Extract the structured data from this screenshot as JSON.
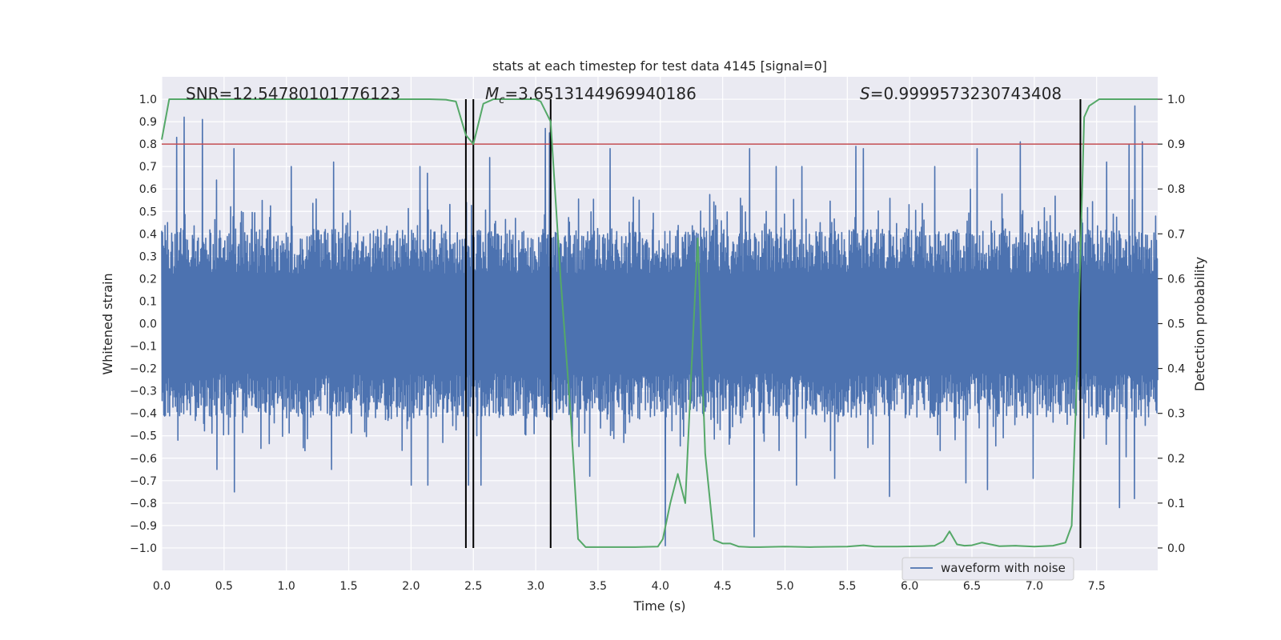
{
  "chart_data": {
    "type": "line",
    "title": "stats at each timestep for test data 4145 [signal=0]",
    "xlabel": "Time (s)",
    "ylabel": "Whitened strain",
    "y2label": "Detection probability",
    "xlim": [
      0.0,
      7.99
    ],
    "ylim": [
      -1.1,
      1.1
    ],
    "y2lim": [
      -0.05,
      1.05
    ],
    "x_ticks": [
      0.0,
      0.5,
      1.0,
      1.5,
      2.0,
      2.5,
      3.0,
      3.5,
      4.0,
      4.5,
      5.0,
      5.5,
      6.0,
      6.5,
      7.0,
      7.5
    ],
    "x_tick_labels": [
      "0.0",
      "0.5",
      "1.0",
      "1.5",
      "2.0",
      "2.5",
      "3.0",
      "3.5",
      "4.0",
      "4.5",
      "5.0",
      "5.5",
      "6.0",
      "6.5",
      "7.0",
      "7.5"
    ],
    "y_ticks": [
      -1.0,
      -0.9,
      -0.8,
      -0.7,
      -0.6,
      -0.5,
      -0.4,
      -0.3,
      -0.2,
      -0.1,
      0.0,
      0.1,
      0.2,
      0.3,
      0.4,
      0.5,
      0.6,
      0.7,
      0.8,
      0.9,
      1.0
    ],
    "y_tick_labels": [
      "−1.0",
      "−0.9",
      "−0.8",
      "−0.7",
      "−0.6",
      "−0.5",
      "−0.4",
      "−0.3",
      "−0.2",
      "−0.1",
      "0.0",
      "0.1",
      "0.2",
      "0.3",
      "0.4",
      "0.5",
      "0.6",
      "0.7",
      "0.8",
      "0.9",
      "1.0"
    ],
    "y2_ticks": [
      0.0,
      0.1,
      0.2,
      0.3,
      0.4,
      0.5,
      0.6,
      0.7,
      0.8,
      0.9,
      1.0
    ],
    "y2_tick_labels": [
      "0.0",
      "0.1",
      "0.2",
      "0.3",
      "0.4",
      "0.5",
      "0.6",
      "0.7",
      "0.8",
      "0.9",
      "1.0"
    ],
    "threshold": {
      "axis": "y2",
      "value": 0.9,
      "color": "#c44e52"
    },
    "vlines": [
      2.44,
      2.5,
      3.12,
      7.37
    ],
    "annotations": {
      "snr": "SNR=12.54780101776123",
      "mc_symbol": "M",
      "mc_sub": "c",
      "mc_value": "=3.6513144969940186",
      "s_symbol": "S",
      "s_value": "=0.9999573230743408"
    },
    "legend": {
      "label": "waveform with noise",
      "position": "lower-right"
    },
    "series": [
      {
        "name": "waveform with noise",
        "axis": "y",
        "color": "#4c72b0",
        "style": "dense-noise",
        "x_range": [
          0.0,
          7.99
        ],
        "typical_envelope": [
          -0.4,
          0.4
        ],
        "peaks": [
          [
            0.12,
            0.83
          ],
          [
            0.18,
            0.92
          ],
          [
            0.33,
            0.91
          ],
          [
            0.58,
            0.78
          ],
          [
            0.44,
            0.64
          ],
          [
            1.38,
            0.72
          ],
          [
            1.04,
            0.7
          ],
          [
            2.07,
            0.7
          ],
          [
            2.13,
            0.67
          ],
          [
            2.63,
            0.74
          ],
          [
            3.08,
            0.87
          ],
          [
            3.11,
            0.85
          ],
          [
            3.6,
            0.78
          ],
          [
            4.72,
            0.78
          ],
          [
            4.93,
            0.7
          ],
          [
            5.14,
            0.7
          ],
          [
            5.57,
            0.79
          ],
          [
            5.63,
            0.78
          ],
          [
            6.2,
            0.7
          ],
          [
            6.54,
            0.78
          ],
          [
            6.89,
            0.81
          ],
          [
            7.58,
            0.72
          ],
          [
            7.76,
            0.8
          ],
          [
            7.81,
            0.97
          ],
          [
            7.87,
            0.81
          ]
        ],
        "troughs": [
          [
            0.58,
            -0.75
          ],
          [
            0.44,
            -0.65
          ],
          [
            1.36,
            -0.65
          ],
          [
            2.0,
            -0.72
          ],
          [
            2.13,
            -0.72
          ],
          [
            2.46,
            -0.72
          ],
          [
            2.56,
            -0.72
          ],
          [
            3.43,
            -0.68
          ],
          [
            4.04,
            -0.99
          ],
          [
            4.75,
            -0.95
          ],
          [
            5.09,
            -0.72
          ],
          [
            5.4,
            -0.69
          ],
          [
            5.84,
            -0.77
          ],
          [
            6.45,
            -0.71
          ],
          [
            6.62,
            -0.74
          ],
          [
            6.99,
            -0.69
          ],
          [
            7.68,
            -0.82
          ],
          [
            7.8,
            -0.78
          ]
        ]
      },
      {
        "name": "detection probability",
        "axis": "y2",
        "color": "#55a868",
        "x": [
          0.0,
          0.06,
          0.12,
          0.5,
          1.0,
          1.5,
          2.0,
          2.15,
          2.28,
          2.36,
          2.44,
          2.5,
          2.58,
          2.66,
          2.8,
          3.0,
          3.04,
          3.12,
          3.2,
          3.28,
          3.34,
          3.4,
          3.6,
          3.8,
          3.98,
          4.02,
          4.08,
          4.14,
          4.2,
          4.25,
          4.3,
          4.36,
          4.43,
          4.5,
          4.56,
          4.63,
          4.72,
          4.8,
          5.0,
          5.2,
          5.5,
          5.63,
          5.72,
          5.9,
          6.1,
          6.2,
          6.27,
          6.32,
          6.38,
          6.44,
          6.5,
          6.58,
          6.72,
          6.85,
          7.0,
          7.15,
          7.25,
          7.3,
          7.35,
          7.4,
          7.44,
          7.52,
          7.7,
          7.99
        ],
        "y": [
          0.91,
          1.0,
          1.0,
          1.0,
          1.0,
          1.0,
          1.0,
          1.0,
          0.999,
          0.995,
          0.92,
          0.9,
          0.99,
          1.0,
          1.0,
          1.0,
          0.995,
          0.95,
          0.6,
          0.3,
          0.02,
          0.002,
          0.002,
          0.002,
          0.003,
          0.02,
          0.1,
          0.165,
          0.1,
          0.4,
          0.69,
          0.21,
          0.018,
          0.01,
          0.01,
          0.003,
          0.002,
          0.002,
          0.003,
          0.002,
          0.003,
          0.006,
          0.003,
          0.003,
          0.004,
          0.005,
          0.015,
          0.037,
          0.008,
          0.005,
          0.006,
          0.012,
          0.004,
          0.005,
          0.003,
          0.005,
          0.012,
          0.05,
          0.45,
          0.96,
          0.985,
          1.0,
          1.0,
          1.0
        ]
      }
    ]
  }
}
